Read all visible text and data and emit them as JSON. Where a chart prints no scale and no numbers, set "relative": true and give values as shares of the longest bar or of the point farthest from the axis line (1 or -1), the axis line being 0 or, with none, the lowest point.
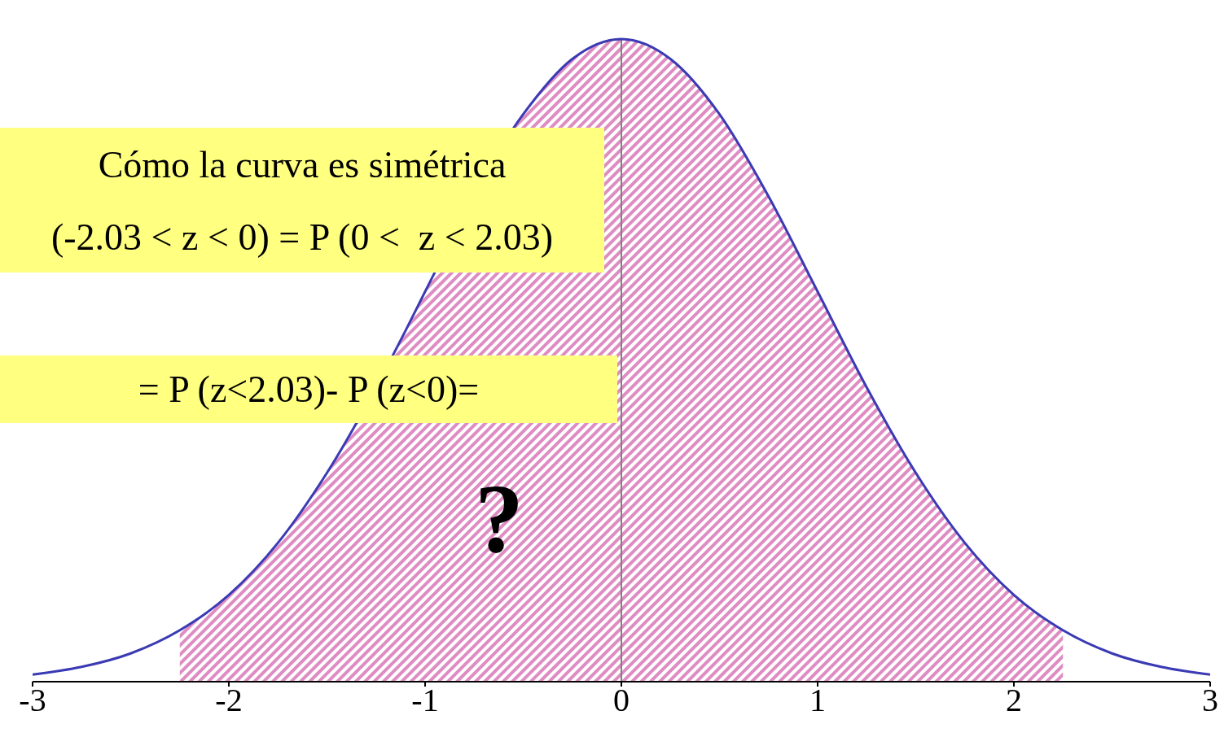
{
  "chart_data": {
    "type": "line",
    "relative": true,
    "x": [
      -3,
      -2.75,
      -2.5,
      -2.25,
      -2,
      -1.75,
      -1.5,
      -1.1,
      -1,
      -0.5,
      -0.25,
      0,
      0.25,
      0.5,
      0.75,
      1,
      1.25,
      1.5,
      1.75,
      2,
      2.25,
      2.5,
      2.75,
      3
    ],
    "series": [
      {
        "type": "area",
        "color": "#c8409a",
        "values": [
          null,
          null,
          null,
          0.08,
          0.135,
          0.216,
          0.325,
          0.546,
          0.607,
          0.883,
          0.969,
          1,
          0.969,
          0.883,
          0.755,
          0.607,
          0.458,
          0.325,
          0.216,
          0.135,
          0.08,
          null,
          null,
          null
        ]
      },
      {
        "type": "line",
        "color": "#3a3ab4",
        "values": [
          0.011,
          0.023,
          0.044,
          0.08,
          0.135,
          0.216,
          0.325,
          0.546,
          0.607,
          0.883,
          0.969,
          1,
          0.969,
          0.883,
          0.755,
          0.607,
          0.458,
          0.325,
          0.216,
          0.135,
          0.08,
          0.044,
          0.023,
          0.011
        ]
      }
    ],
    "xlim": [
      -3,
      3
    ],
    "xticks": [
      -3,
      -2,
      -1,
      0,
      1,
      2,
      3
    ],
    "ref_lines": [
      {
        "axis": "x",
        "value": 0,
        "color": "#808080"
      }
    ],
    "annotations": [
      "Cómo la curva es simétrica",
      "(-2.03 < z < 0) = P (0 <  z < 2.03)",
      "= P (z<2.03)- P (z<0)=",
      "?"
    ]
  }
}
